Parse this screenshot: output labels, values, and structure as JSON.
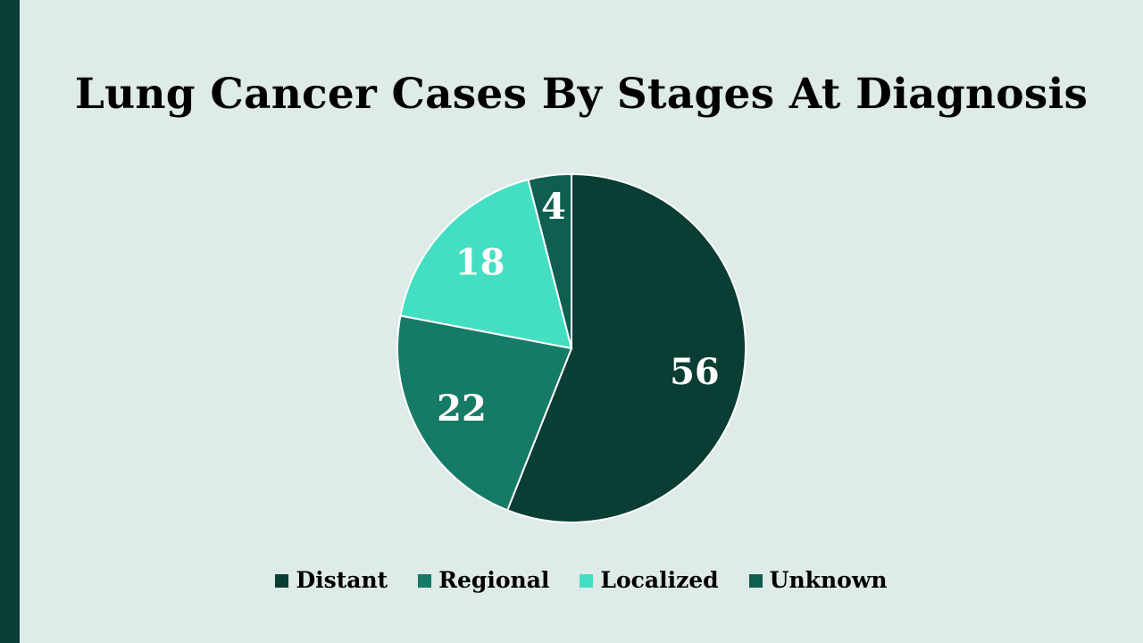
{
  "chart_data": {
    "type": "pie",
    "title": "Lung Cancer Cases By Stages At Diagnosis",
    "categories": [
      "Distant",
      "Regional",
      "Localized",
      "Unknown"
    ],
    "values": [
      56,
      22,
      18,
      4
    ],
    "colors": [
      "#0a3d33",
      "#157a66",
      "#44dfc3",
      "#0f5e50"
    ],
    "data_labels": [
      "56",
      "22",
      "18",
      "4"
    ],
    "legend_position": "bottom",
    "start_angle": "top",
    "direction": "clockwise"
  },
  "theme": {
    "background": "#deebe8",
    "accent_bar": "#0a3d33"
  }
}
